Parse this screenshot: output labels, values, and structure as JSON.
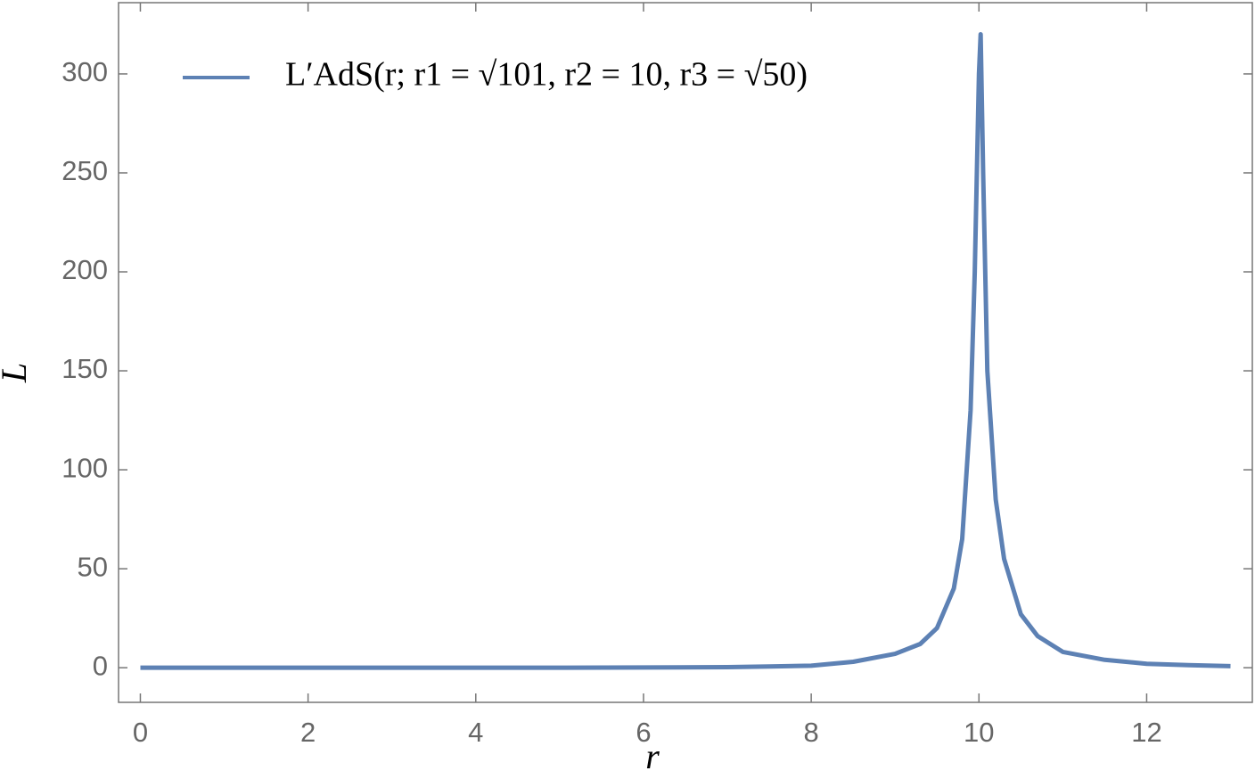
{
  "chart_data": {
    "type": "line",
    "x_label": "r",
    "y_label": "L",
    "x": [
      0,
      1,
      2,
      3,
      4,
      5,
      6,
      7,
      7.5,
      8,
      8.5,
      9,
      9.3,
      9.5,
      9.7,
      9.8,
      9.9,
      9.95,
      10.0,
      10.02,
      10.05,
      10.1,
      10.2,
      10.3,
      10.5,
      10.7,
      11,
      11.5,
      12,
      12.5,
      13
    ],
    "series": [
      {
        "name": "L′AdS(r; r1 = √101, r2 = 10, r3 = √50)",
        "color": "#5d81b4",
        "values": [
          0,
          0,
          0,
          0,
          0,
          0,
          0.1,
          0.3,
          0.6,
          1,
          3,
          7,
          12,
          20,
          40,
          65,
          130,
          200,
          300,
          320,
          250,
          150,
          85,
          55,
          27,
          16,
          8,
          4,
          2,
          1.3,
          0.8
        ]
      }
    ],
    "xlim": [
      -0.26,
      13.26
    ],
    "ylim": [
      -17.5,
      336
    ],
    "xticks": [
      0,
      2,
      4,
      6,
      8,
      10,
      12
    ],
    "yticks": [
      0,
      50,
      100,
      150,
      200,
      250,
      300
    ],
    "legend": "upper left"
  }
}
